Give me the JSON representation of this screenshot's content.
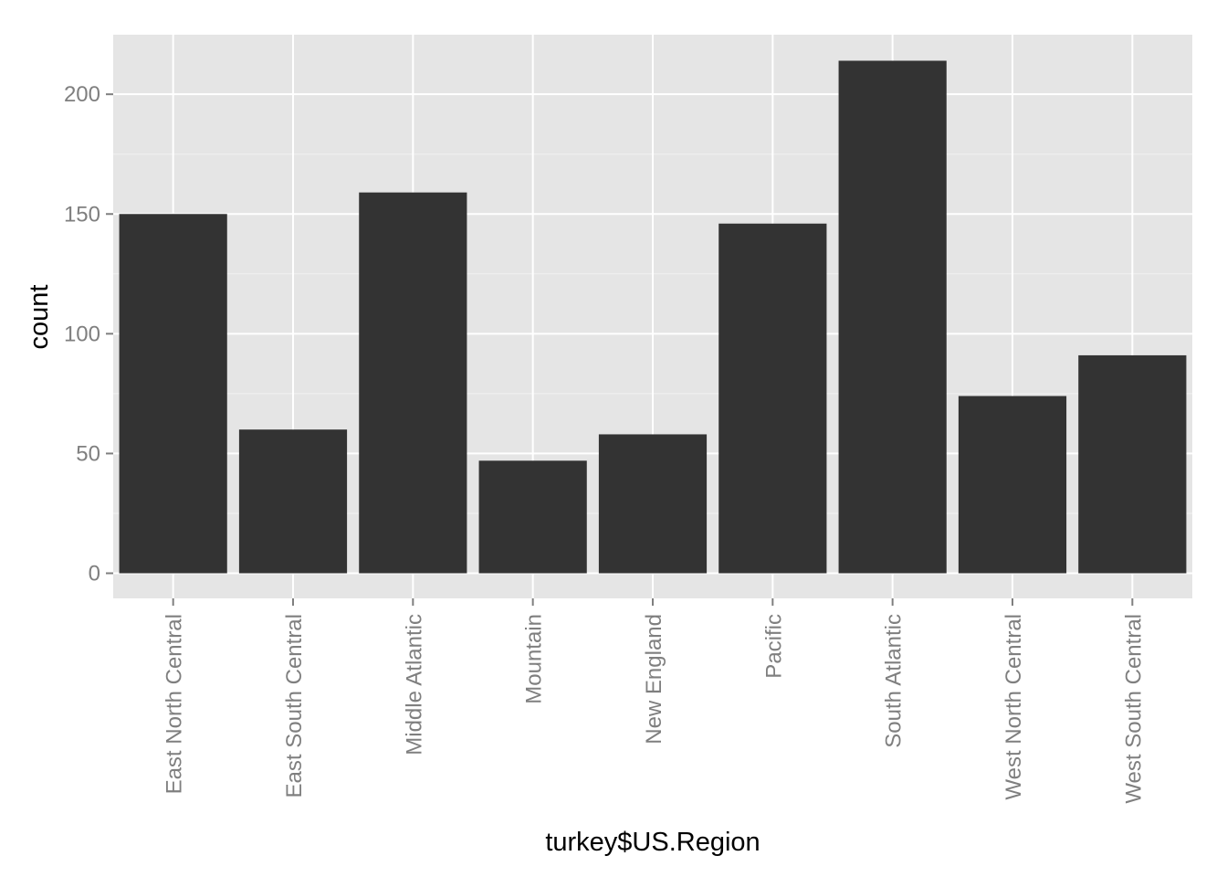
{
  "chart_data": {
    "type": "bar",
    "title": "",
    "xlabel": "turkey$US.Region",
    "ylabel": "count",
    "categories": [
      "East North Central",
      "East South Central",
      "Middle Atlantic",
      "Mountain",
      "New England",
      "Pacific",
      "South Atlantic",
      "West North Central",
      "West South Central"
    ],
    "values": [
      150,
      60,
      159,
      47,
      58,
      146,
      214,
      74,
      91
    ],
    "ylim": [
      -10,
      225
    ],
    "yticks": [
      0,
      50,
      100,
      150,
      200
    ],
    "ytick_labels": [
      "0",
      "50",
      "100",
      "150",
      "200"
    ],
    "grid": true,
    "colors": {
      "panel": "#e5e5e5",
      "bar": "#333333",
      "grid_major": "#ffffff",
      "grid_minor": "#f2f2f2",
      "tick": "#7f7f7f"
    }
  }
}
